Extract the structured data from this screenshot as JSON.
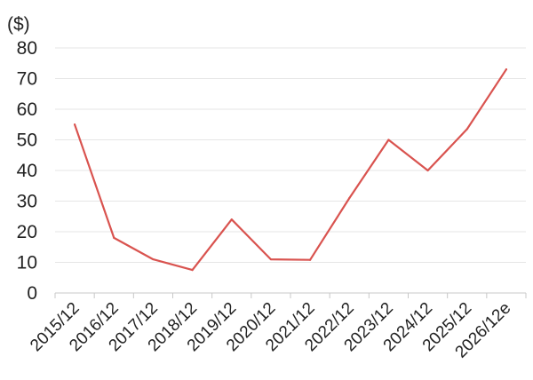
{
  "chart_data": {
    "type": "line",
    "title": "",
    "xlabel": "",
    "ylabel": "($)",
    "ylim": [
      0,
      80
    ],
    "yticks": [
      0,
      10,
      20,
      30,
      40,
      50,
      60,
      70,
      80
    ],
    "grid": true,
    "categories": [
      "2015/12",
      "2016/12",
      "2017/12",
      "2018/12",
      "2019/12",
      "2020/12",
      "2021/12",
      "2022/12",
      "2023/12",
      "2024/12",
      "2025/12",
      "2026/12e"
    ],
    "series": [
      {
        "values": [
          55,
          18,
          11,
          7.5,
          24,
          11,
          10.8,
          31,
          50,
          40,
          53.5,
          73
        ]
      }
    ],
    "colors": {
      "line": "#d9534f",
      "grid": "#e6e6e6",
      "axis": "#c8c8c8"
    }
  }
}
